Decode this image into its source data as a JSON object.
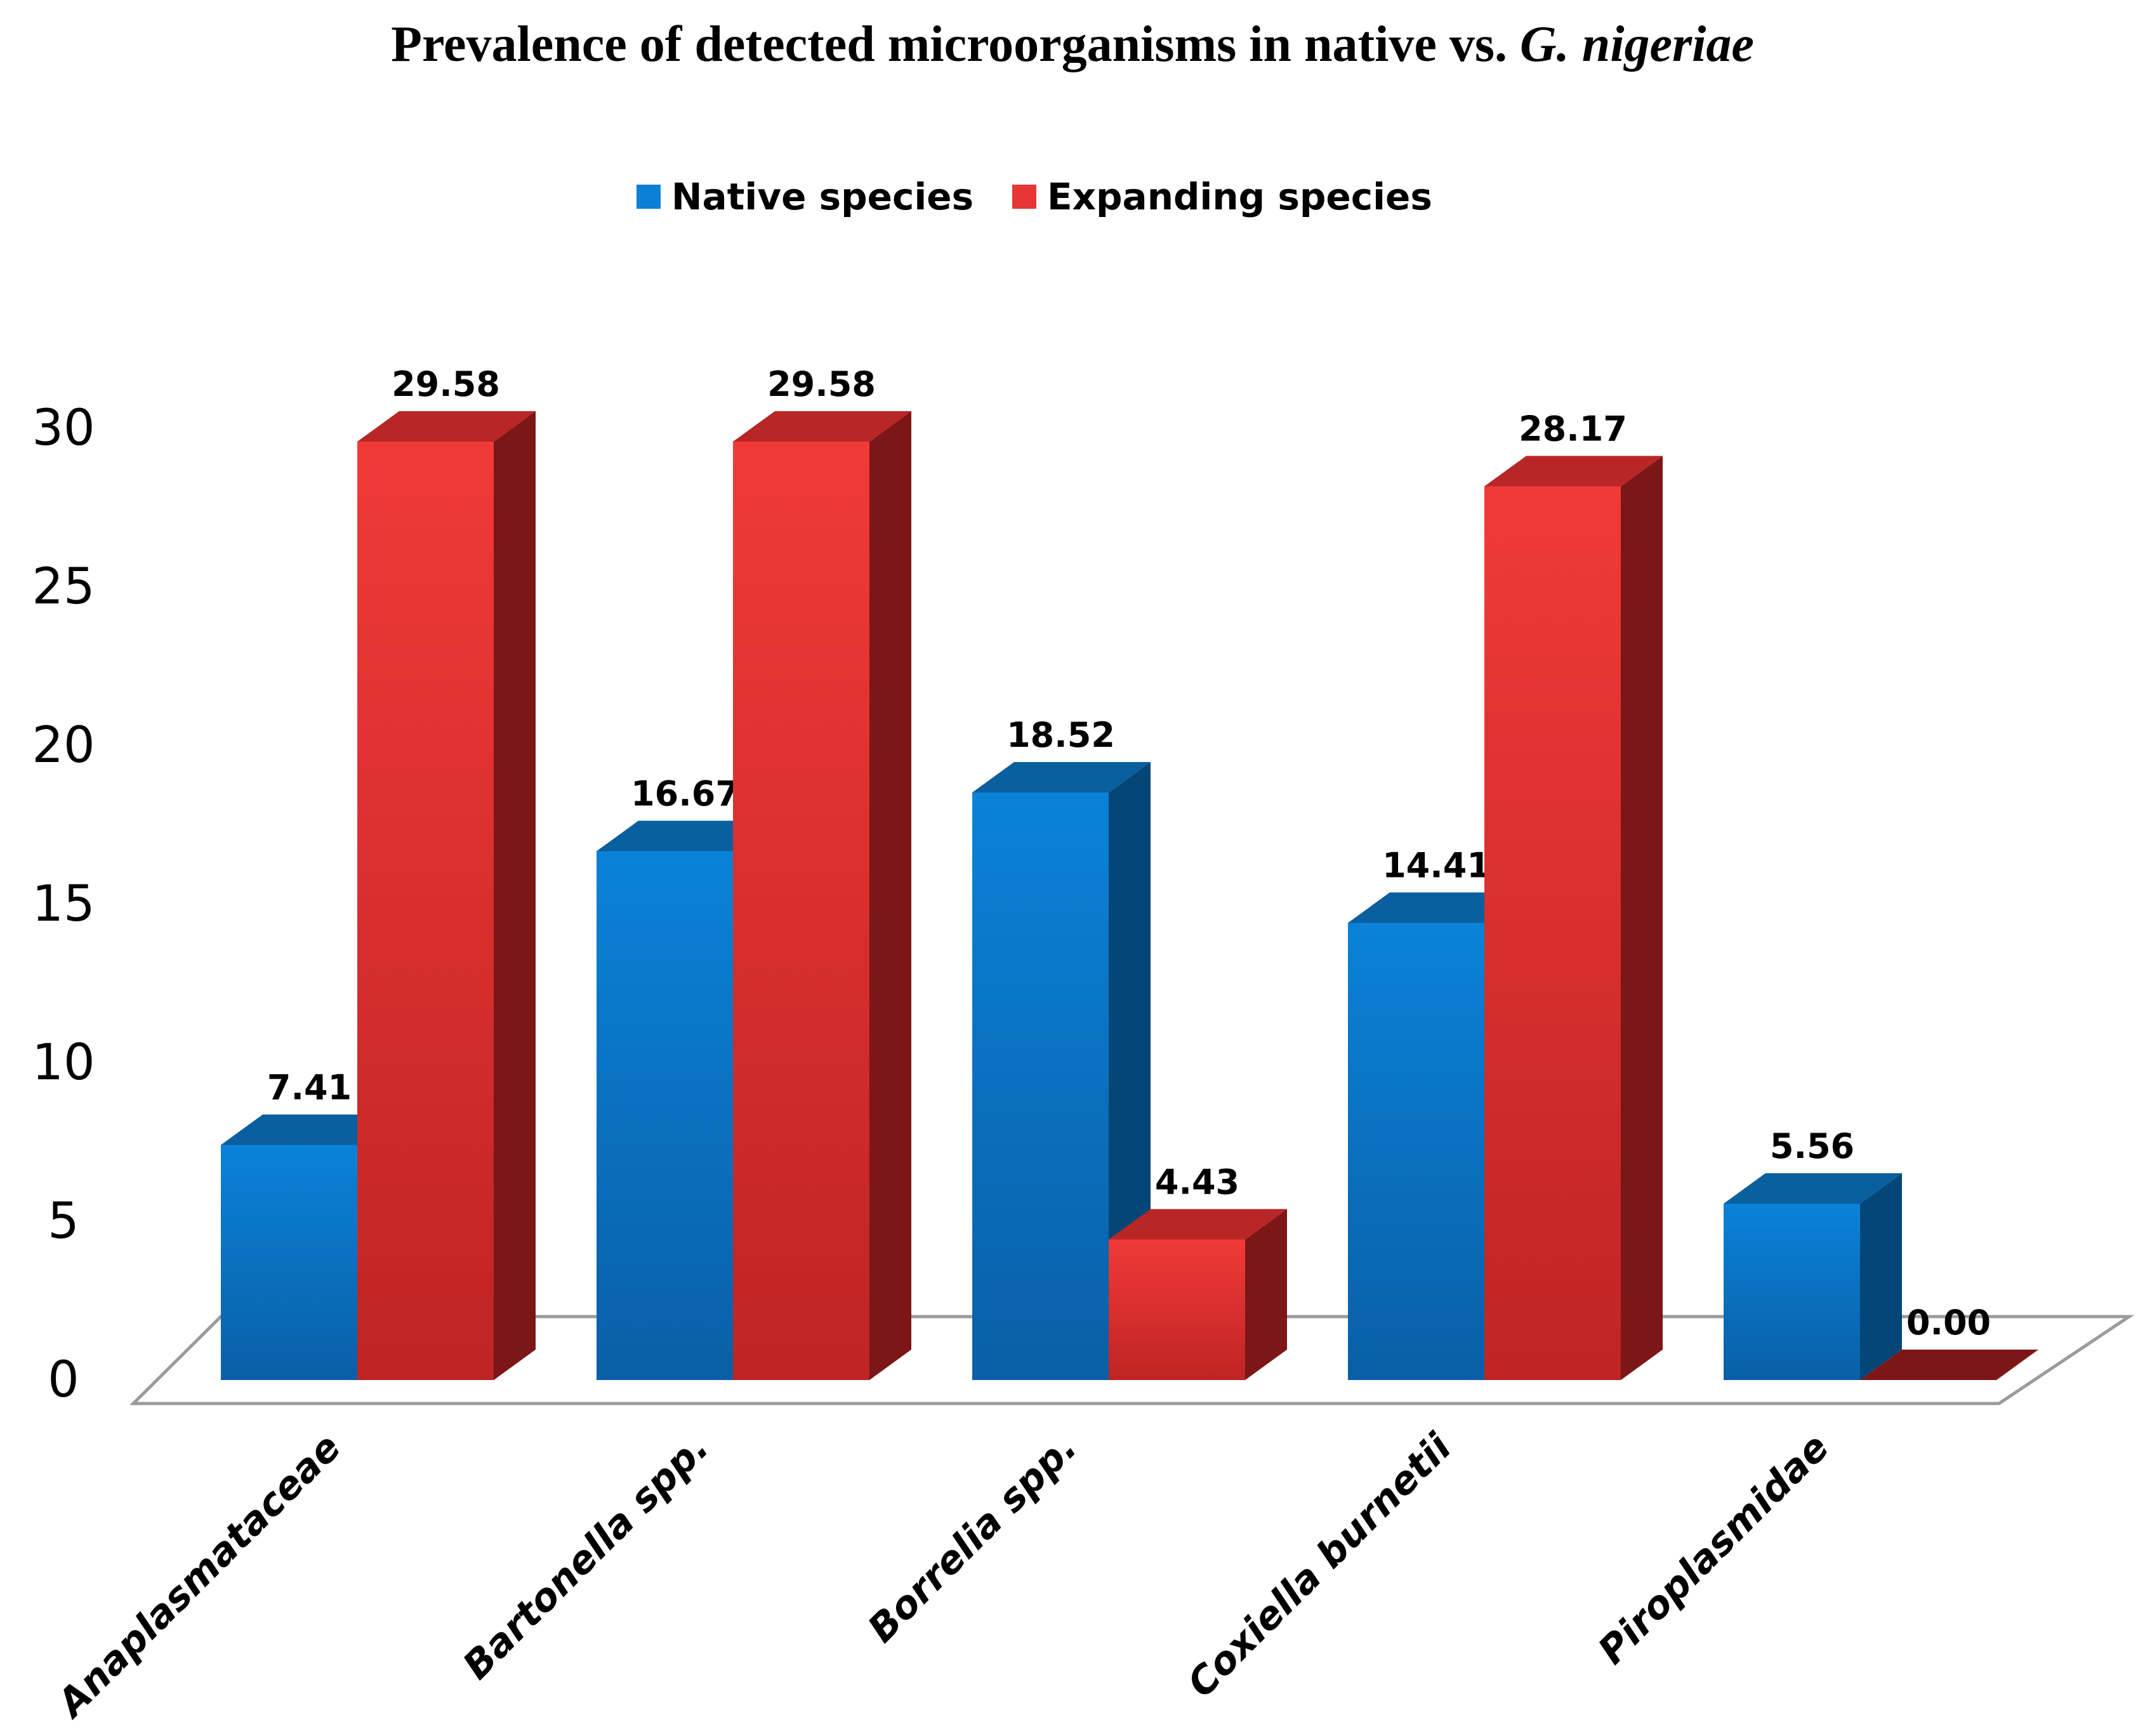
{
  "chart_data": {
    "type": "bar",
    "title": "Prevalence of detected microorganisms in native vs.",
    "title_italic": "G. nigeriae",
    "categories": [
      "Anaplasmataceae",
      "Bartonella  spp.",
      "Borrelia spp.",
      "Coxiella burnetii",
      "Piroplasmidae"
    ],
    "series": [
      {
        "name": "Native species",
        "values": [
          7.41,
          16.67,
          18.52,
          14.41,
          5.56
        ],
        "labels": [
          "7.41",
          "16.67",
          "18.52",
          "14.41",
          "5.56"
        ],
        "color": "#0a7fd4"
      },
      {
        "name": "Expanding species",
        "values": [
          29.58,
          29.58,
          4.43,
          28.17,
          0.0
        ],
        "labels": [
          "29.58",
          "29.58",
          "4.43",
          "28.17",
          "0.00"
        ],
        "color": "#e83535"
      }
    ],
    "y_ticks": [
      "0",
      "5",
      "10",
      "15",
      "20",
      "25",
      "30"
    ],
    "ylim": [
      0,
      30
    ],
    "xlabel": "",
    "ylabel": "",
    "legend_position": "top-center",
    "grid": false
  }
}
